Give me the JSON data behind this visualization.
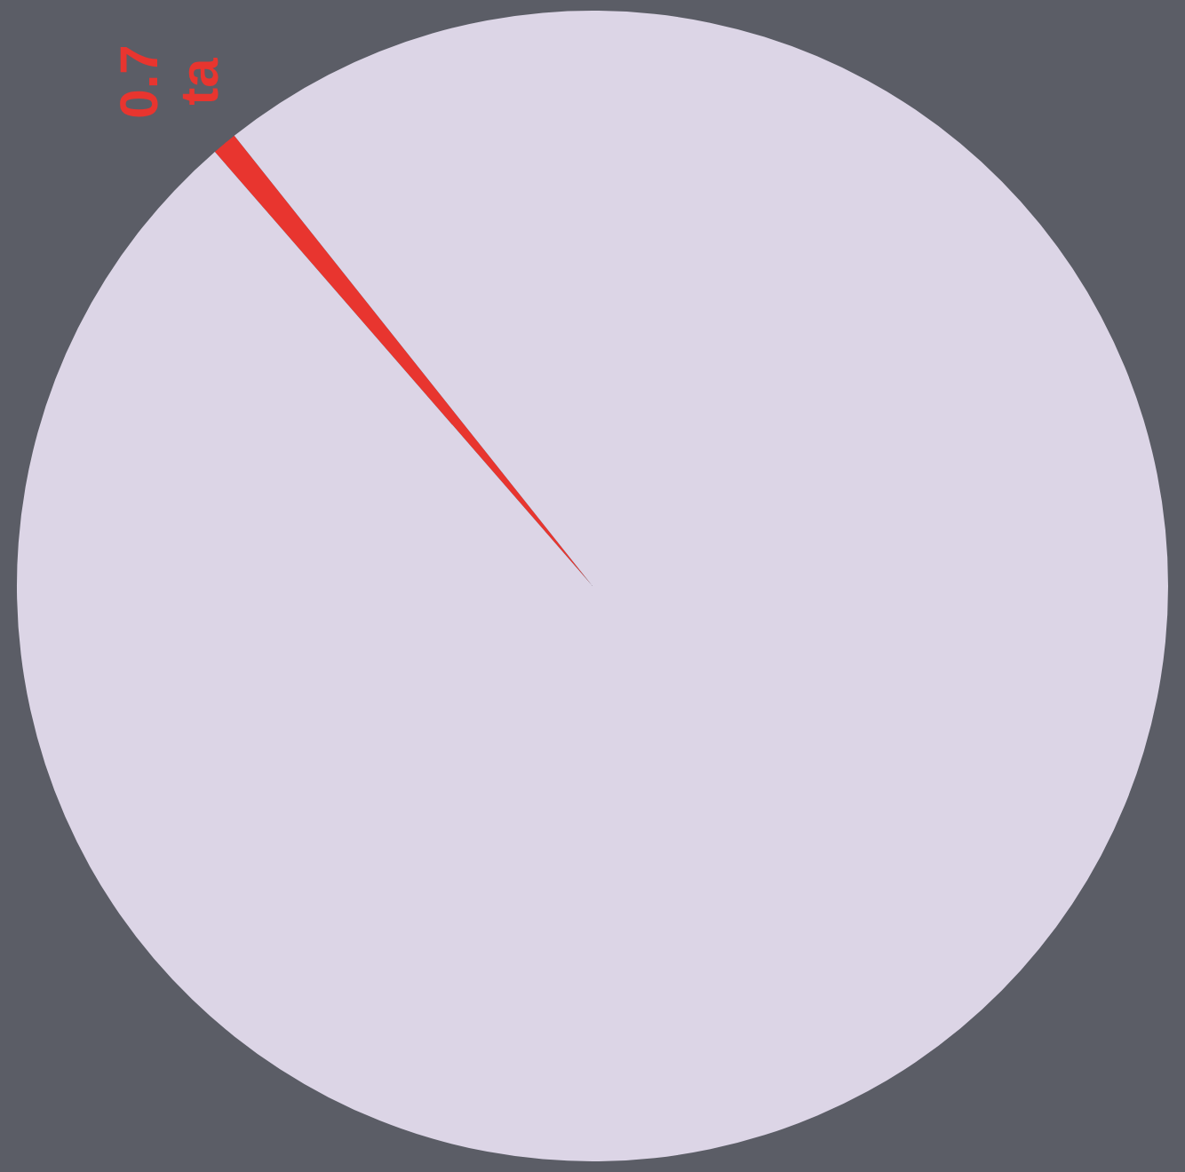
{
  "chart_data": {
    "type": "pie",
    "categories": [
      "ta",
      null
    ],
    "values": [
      0.7,
      99.3
    ],
    "value_labels": [
      "0.7",
      null
    ],
    "colors": [
      "#e8352f",
      "#dcd5e6"
    ],
    "legend": false
  }
}
